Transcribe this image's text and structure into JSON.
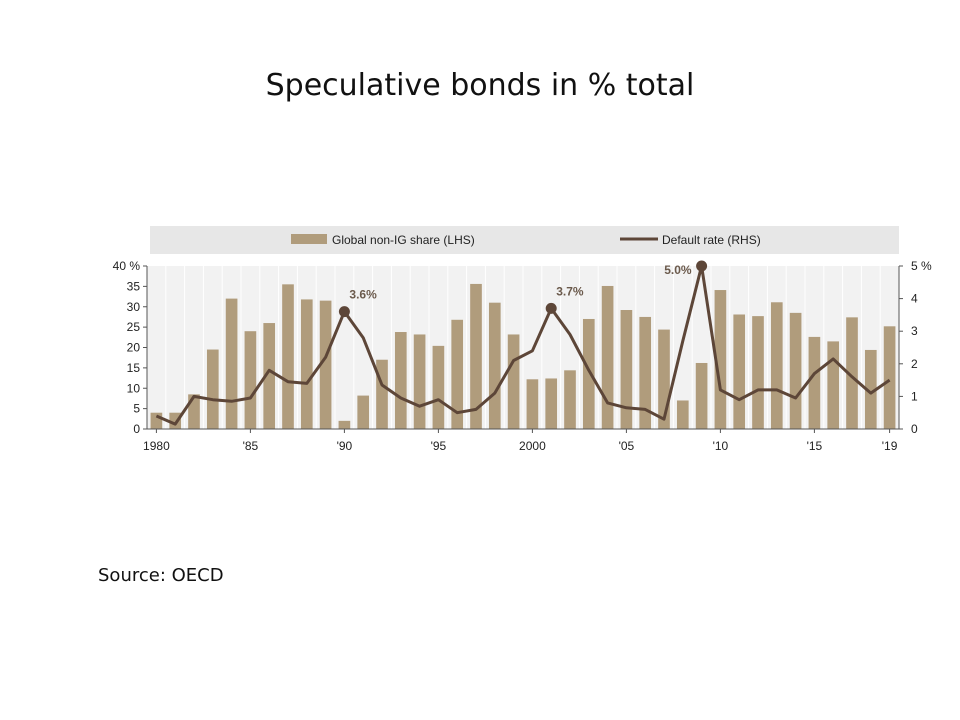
{
  "slide": {
    "title": "Speculative bonds in % total",
    "source": "Source: OECD"
  },
  "colors": {
    "bar": "#b09c7c",
    "line": "#5d4638",
    "legend_bg": "#e7e7e7",
    "plot_bg": "#f2f2f2",
    "grid": "#ffffff",
    "annotation": "#6b5a4c"
  },
  "chart_data": {
    "type": "bar",
    "legend_position": "top",
    "grid": true,
    "series": [
      {
        "name": "Global non-IG share (LHS)",
        "type": "bar",
        "axis": "left",
        "values": [
          4,
          4,
          8.5,
          19.5,
          32,
          24,
          26,
          35.5,
          31.8,
          31.5,
          2,
          8.2,
          17,
          23.8,
          23.2,
          20.4,
          26.8,
          35.6,
          31,
          23.2,
          12.2,
          12.4,
          14.4,
          27,
          35.1,
          29.2,
          27.5,
          24.4,
          7,
          16.2,
          34.1,
          28.1,
          27.7,
          31.1,
          28.5,
          22.6,
          21.5,
          27.4,
          19.4,
          25.2
        ]
      },
      {
        "name": "Default rate (RHS)",
        "type": "line",
        "axis": "right",
        "values": [
          0.4,
          0.15,
          1,
          0.9,
          0.85,
          0.95,
          1.8,
          1.45,
          1.4,
          2.2,
          3.6,
          2.8,
          1.35,
          0.95,
          0.7,
          0.9,
          0.5,
          0.6,
          1.1,
          2.1,
          2.4,
          3.7,
          2.9,
          1.8,
          0.8,
          0.65,
          0.6,
          0.3,
          2.7,
          5.0,
          1.2,
          0.9,
          1.2,
          1.2,
          0.95,
          1.7,
          2.15,
          1.6,
          1.1,
          1.5
        ]
      }
    ],
    "x": [
      1980,
      1981,
      1982,
      1983,
      1984,
      1985,
      1986,
      1987,
      1988,
      1989,
      1990,
      1991,
      1992,
      1993,
      1994,
      1995,
      1996,
      1997,
      1998,
      1999,
      2000,
      2001,
      2002,
      2003,
      2004,
      2005,
      2006,
      2007,
      2008,
      2009,
      2010,
      2011,
      2012,
      2013,
      2014,
      2015,
      2016,
      2017,
      2018,
      2019
    ],
    "x_tick_labels": [
      {
        "x": 1980,
        "label": "1980"
      },
      {
        "x": 1985,
        "label": "'85"
      },
      {
        "x": 1990,
        "label": "'90"
      },
      {
        "x": 1995,
        "label": "'95"
      },
      {
        "x": 2000,
        "label": "2000"
      },
      {
        "x": 2005,
        "label": "'05"
      },
      {
        "x": 2010,
        "label": "'10"
      },
      {
        "x": 2015,
        "label": "'15"
      },
      {
        "x": 2019,
        "label": "'19"
      }
    ],
    "y_left": {
      "lim": [
        0,
        40
      ],
      "ticks": [
        {
          "v": 0,
          "label": "0"
        },
        {
          "v": 5,
          "label": "5"
        },
        {
          "v": 10,
          "label": "10"
        },
        {
          "v": 15,
          "label": "15"
        },
        {
          "v": 20,
          "label": "20"
        },
        {
          "v": 25,
          "label": "25"
        },
        {
          "v": 30,
          "label": "30"
        },
        {
          "v": 35,
          "label": "35"
        },
        {
          "v": 40,
          "label": "40 %"
        }
      ]
    },
    "y_right": {
      "lim": [
        0,
        5
      ],
      "ticks": [
        {
          "v": 0,
          "label": "0"
        },
        {
          "v": 1,
          "label": "1"
        },
        {
          "v": 2,
          "label": "2"
        },
        {
          "v": 3,
          "label": "3"
        },
        {
          "v": 4,
          "label": "4"
        },
        {
          "v": 5,
          "label": "5 %"
        }
      ]
    },
    "annotations": [
      {
        "x": 1990,
        "y": 3.6,
        "label": "3.6%",
        "side": "right"
      },
      {
        "x": 2001,
        "y": 3.7,
        "label": "3.7%",
        "side": "right"
      },
      {
        "x": 2009,
        "y": 5.0,
        "label": "5.0%",
        "side": "left"
      }
    ]
  }
}
